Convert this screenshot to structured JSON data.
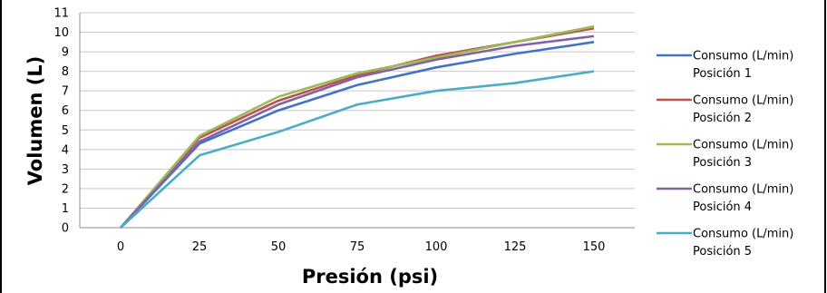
{
  "chart_data": {
    "type": "line",
    "title": "",
    "xlabel": "Presión (psi)",
    "ylabel": "Volumen (L)",
    "x": [
      0,
      25,
      50,
      75,
      100,
      125,
      150
    ],
    "ylim": [
      0,
      11
    ],
    "yticks": [
      0,
      1,
      2,
      3,
      4,
      5,
      6,
      7,
      8,
      9,
      10,
      11
    ],
    "grid": true,
    "legend_position": "right",
    "series": [
      {
        "name": "Consumo (L/min) Posición 1",
        "name_line1": "Consumo (L/min)",
        "name_line2": "Posición 1",
        "color": "#4472C4",
        "values": [
          0,
          4.3,
          6.0,
          7.3,
          8.2,
          8.9,
          9.5
        ]
      },
      {
        "name": "Consumo (L/min) Posición 2",
        "name_line1": "Consumo (L/min)",
        "name_line2": "Posición 2",
        "color": "#C0504D",
        "values": [
          0,
          4.6,
          6.5,
          7.8,
          8.8,
          9.5,
          10.2
        ]
      },
      {
        "name": "Consumo (L/min) Posición 3",
        "name_line1": "Consumo (L/min)",
        "name_line2": "Posición 3",
        "color": "#9BBB59",
        "values": [
          0,
          4.7,
          6.7,
          7.9,
          8.7,
          9.5,
          10.3
        ]
      },
      {
        "name": "Consumo (L/min) Posición 4",
        "name_line1": "Consumo (L/min)",
        "name_line2": "Posición 4",
        "color": "#8064A2",
        "values": [
          0,
          4.4,
          6.3,
          7.7,
          8.6,
          9.3,
          9.8
        ]
      },
      {
        "name": "Consumo (L/min) Posición 5",
        "name_line1": "Consumo (L/min)",
        "name_line2": "Posición 5",
        "color": "#4BACC6",
        "values": [
          0,
          3.7,
          4.9,
          6.3,
          7.0,
          7.4,
          8.0
        ]
      }
    ]
  }
}
